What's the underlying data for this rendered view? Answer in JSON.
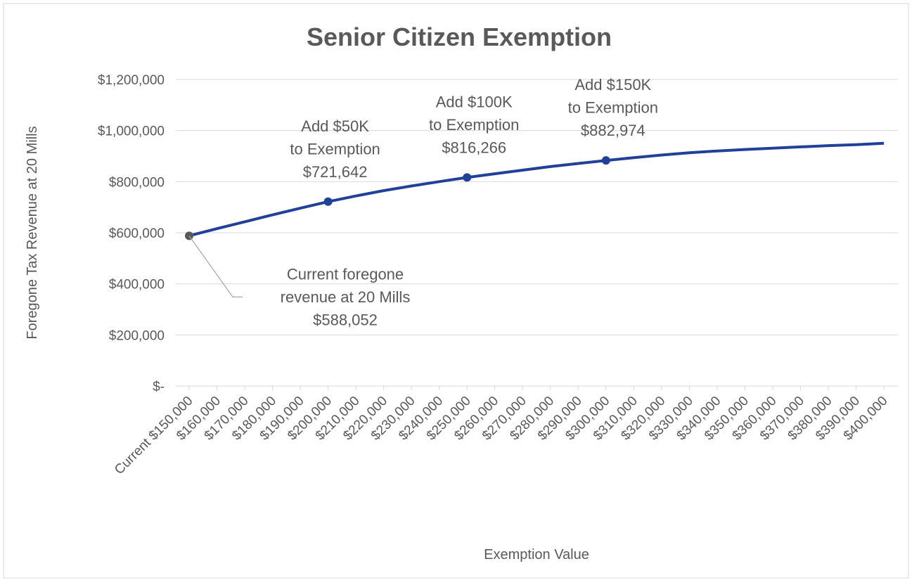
{
  "chart_data": {
    "type": "line",
    "title": "Senior Citizen Exemption",
    "x_label": "Exemption Value",
    "y_label": "Foregone Tax Revenue at 20 Mills",
    "categories": [
      "Current $150,000",
      "$160,000",
      "$170,000",
      "$180,000",
      "$190,000",
      "$200,000",
      "$210,000",
      "$220,000",
      "$230,000",
      "$240,000",
      "$250,000",
      "$260,000",
      "$270,000",
      "$280,000",
      "$290,000",
      "$300,000",
      "$310,000",
      "$320,000",
      "$330,000",
      "$340,000",
      "$350,000",
      "$360,000",
      "$370,000",
      "$380,000",
      "$390,000",
      "$400,000"
    ],
    "series": [
      {
        "name": "Foregone Tax Revenue",
        "color": "#21409a",
        "values": [
          588052,
          616000,
          643000,
          670000,
          696000,
          721642,
          744000,
          765000,
          783000,
          800000,
          816266,
          831000,
          845000,
          859000,
          871000,
          882974,
          894000,
          904000,
          913000,
          920000,
          926000,
          931000,
          936000,
          941000,
          945000,
          950000
        ],
        "value_labels": [
          "$588,052",
          null,
          null,
          null,
          null,
          "$721,642",
          null,
          null,
          null,
          null,
          "$816,266",
          null,
          null,
          null,
          null,
          "$882,974",
          null,
          null,
          null,
          null,
          null,
          null,
          null,
          null,
          null,
          null
        ],
        "notes": [
          [
            "Current foregone",
            "revenue at 20 Mills"
          ],
          null,
          null,
          null,
          null,
          [
            "Add $50K",
            "to Exemption"
          ],
          null,
          null,
          null,
          null,
          [
            "Add $100K",
            "to Exemption"
          ],
          null,
          null,
          null,
          null,
          [
            "Add $150K",
            "to Exemption"
          ],
          null,
          null,
          null,
          null,
          null,
          null,
          null,
          null,
          null,
          null
        ],
        "marker_colors": [
          "#595959",
          null,
          null,
          null,
          null,
          "#21409a",
          null,
          null,
          null,
          null,
          "#21409a",
          null,
          null,
          null,
          null,
          "#21409a",
          null,
          null,
          null,
          null,
          null,
          null,
          null,
          null,
          null,
          null
        ]
      }
    ],
    "ylim": [
      0,
      1200000
    ],
    "yticks": [
      {
        "value": 0,
        "label": "$-"
      },
      {
        "value": 200000,
        "label": "$200,000"
      },
      {
        "value": 400000,
        "label": "$400,000"
      },
      {
        "value": 600000,
        "label": "$600,000"
      },
      {
        "value": 800000,
        "label": "$800,000"
      },
      {
        "value": 1000000,
        "label": "$1,000,000"
      },
      {
        "value": 1200000,
        "label": "$1,200,000"
      }
    ],
    "grid": true
  }
}
